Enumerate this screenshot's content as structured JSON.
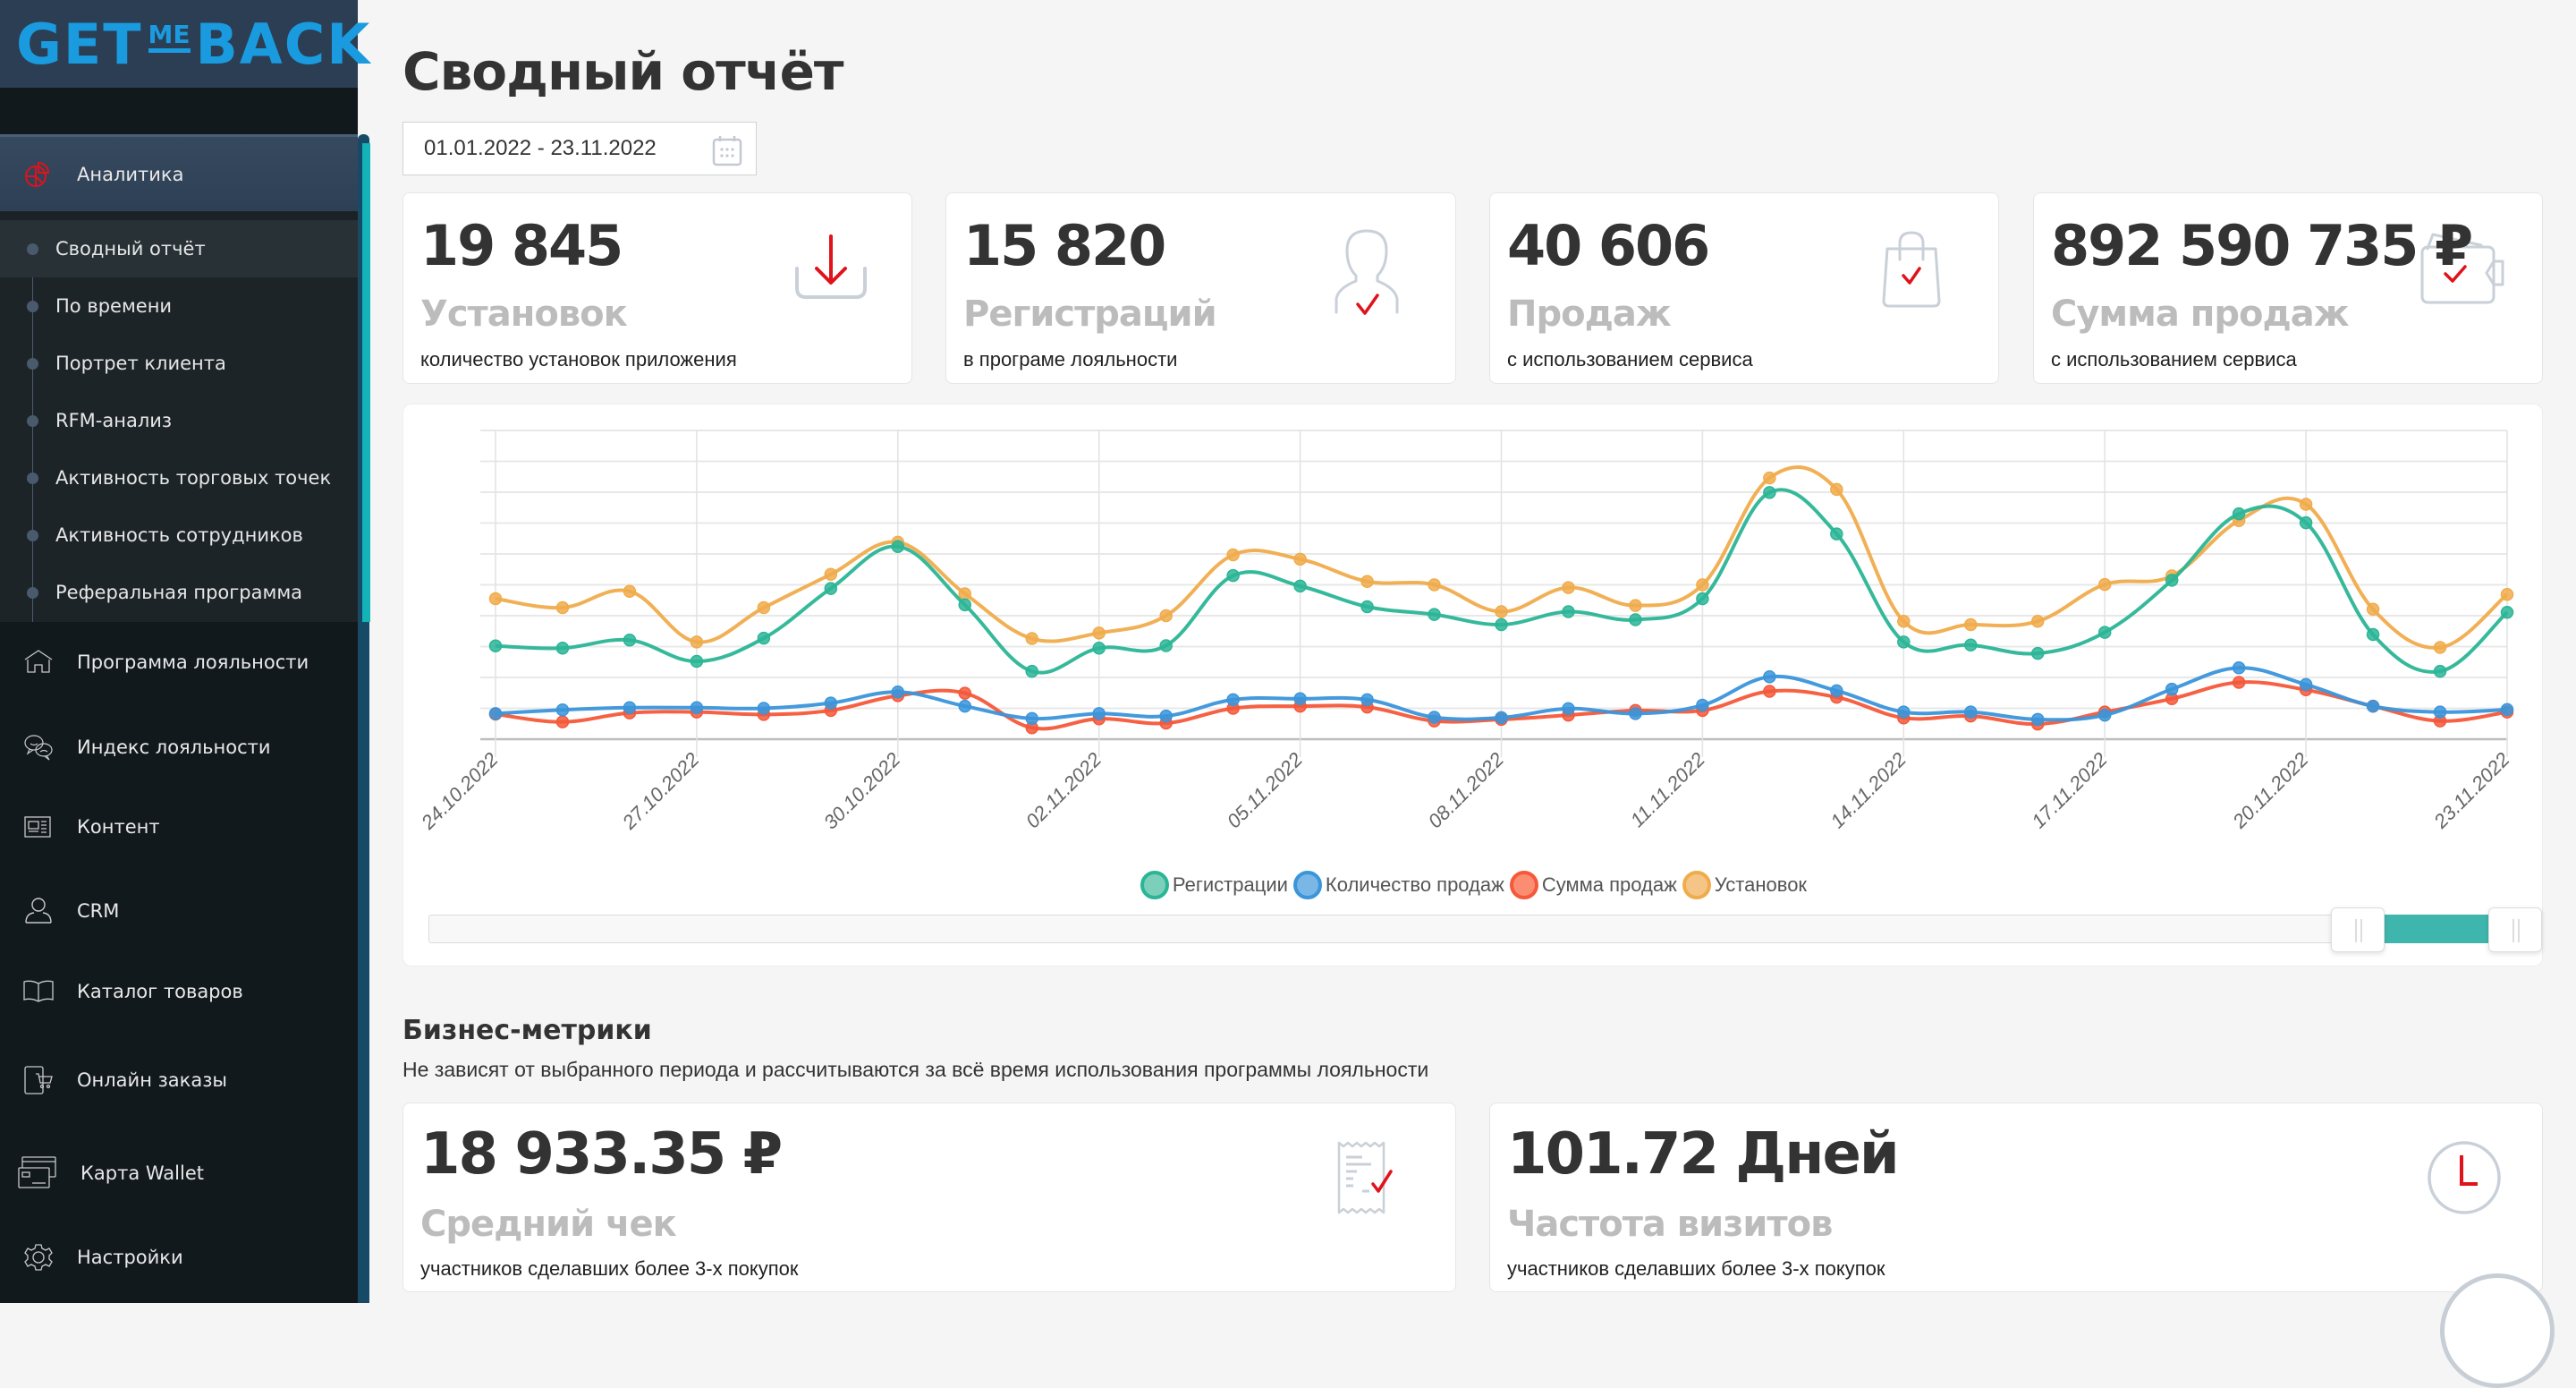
{
  "brand": {
    "logo_parts": [
      "GET",
      "ME",
      "BACK"
    ],
    "color": "#1a9be0"
  },
  "sidebar": {
    "active_section": {
      "label": "Аналитика",
      "icon": "pie-chart-icon"
    },
    "submenu": [
      {
        "label": "Сводный отчёт",
        "active": true
      },
      {
        "label": "По времени",
        "active": false
      },
      {
        "label": "Портрет клиента",
        "active": false
      },
      {
        "label": "RFM-анализ",
        "active": false
      },
      {
        "label": "Активность торговых точек",
        "active": false
      },
      {
        "label": "Активность сотрудников",
        "active": false
      },
      {
        "label": "Реферальная программа",
        "active": false
      }
    ],
    "items": [
      {
        "label": "Программа лояльности",
        "icon": "home-icon"
      },
      {
        "label": "Индекс лояльности",
        "icon": "chat-faces-icon"
      },
      {
        "label": "Контент",
        "icon": "newspaper-icon"
      },
      {
        "label": "CRM",
        "icon": "user-icon"
      },
      {
        "label": "Каталог товаров",
        "icon": "book-icon"
      },
      {
        "label": "Онлайн заказы",
        "icon": "mobile-cart-icon"
      },
      {
        "label": "Карта Wallet",
        "icon": "cards-icon"
      },
      {
        "label": "Настройки",
        "icon": "gear-icon"
      }
    ]
  },
  "header": {
    "title": "Сводный отчёт",
    "date_range": "01.01.2022 - 23.11.2022"
  },
  "kpis": [
    {
      "value": "19 845",
      "title": "Установок",
      "subtitle": "количество установок приложения",
      "icon": "download-icon"
    },
    {
      "value": "15 820",
      "title": "Регистраций",
      "subtitle": "в програме лояльности",
      "icon": "user-check-icon"
    },
    {
      "value": "40 606",
      "title": "Продаж",
      "subtitle": "с использованием сервиса",
      "icon": "shopping-bag-icon"
    },
    {
      "value": "892 590 735 ₽",
      "title": "Сумма продаж",
      "subtitle": "с использованием сервиса",
      "icon": "wallet-icon"
    }
  ],
  "chart_data": {
    "type": "line",
    "title": "",
    "xlabel": "",
    "ylabel": "",
    "ylim": [
      0,
      100
    ],
    "grid": true,
    "y_tick_labels_shown": false,
    "legend_position": "bottom-center",
    "x": [
      "24.10.2022",
      "25.10.2022",
      "26.10.2022",
      "27.10.2022",
      "28.10.2022",
      "29.10.2022",
      "30.10.2022",
      "31.10.2022",
      "01.11.2022",
      "02.11.2022",
      "03.11.2022",
      "04.11.2022",
      "05.11.2022",
      "06.11.2022",
      "07.11.2022",
      "08.11.2022",
      "09.11.2022",
      "10.11.2022",
      "11.11.2022",
      "12.11.2022",
      "13.11.2022",
      "14.11.2022",
      "15.11.2022",
      "16.11.2022",
      "17.11.2022",
      "18.11.2022",
      "19.11.2022",
      "20.11.2022",
      "21.11.2022",
      "22.11.2022",
      "23.11.2022"
    ],
    "x_tick_labels": [
      "24.10.2022",
      "27.10.2022",
      "30.10.2022",
      "02.11.2022",
      "05.11.2022",
      "08.11.2022",
      "11.11.2022",
      "14.11.2022",
      "17.11.2022",
      "20.11.2022",
      "23.11.2022"
    ],
    "series": [
      {
        "name": "Регистрации",
        "color": "#2bb596",
        "values": [
          30.2,
          29.5,
          32.1,
          25.2,
          32.7,
          48.8,
          62.4,
          43.5,
          22.0,
          29.5,
          30.3,
          53.0,
          49.6,
          42.9,
          40.4,
          37.1,
          41.3,
          38.7,
          45.5,
          79.9,
          66.5,
          31.5,
          30.5,
          27.8,
          34.6,
          51.5,
          73.0,
          70.1,
          33.9,
          22.0,
          41.1
        ]
      },
      {
        "name": "Количество продаж",
        "color": "#3a95da",
        "values": [
          8.3,
          9.5,
          10.2,
          10.2,
          10.0,
          11.7,
          15.3,
          10.7,
          6.7,
          8.3,
          7.5,
          12.8,
          13.1,
          12.8,
          7.1,
          7.0,
          9.9,
          8.3,
          11.0,
          20.2,
          15.7,
          8.8,
          8.8,
          6.4,
          7.8,
          16.2,
          23.1,
          17.7,
          10.7,
          8.8,
          9.6
        ]
      },
      {
        "name": "Сумма продаж",
        "color": "#f5583a",
        "values": [
          8.1,
          5.6,
          8.5,
          8.8,
          8.0,
          9.3,
          14.1,
          14.9,
          3.7,
          6.6,
          5.2,
          10.0,
          10.7,
          10.4,
          5.9,
          6.4,
          7.8,
          9.3,
          9.3,
          15.5,
          13.6,
          6.9,
          7.5,
          4.9,
          8.8,
          13.1,
          18.4,
          16.0,
          10.7,
          5.9,
          8.8
        ]
      },
      {
        "name": "Установок",
        "color": "#f0ac4c",
        "values": [
          45.5,
          42.6,
          47.9,
          31.5,
          42.6,
          53.4,
          63.8,
          47.1,
          32.6,
          34.4,
          40.0,
          59.7,
          58.3,
          51.1,
          50.0,
          41.3,
          49.1,
          43.3,
          50.0,
          84.6,
          80.9,
          38.2,
          37.1,
          38.2,
          50.1,
          52.9,
          70.8,
          76.1,
          42.1,
          29.7,
          46.9
        ]
      }
    ],
    "range_selector": {
      "start_fraction": 0.9,
      "end_fraction": 1.0,
      "fill_color": "#3fb6ad"
    }
  },
  "business": {
    "title": "Бизнес-метрики",
    "subtitle": "Не зависят от выбранного периода и рассчитываются за всё время использования программы лояльности",
    "cards": [
      {
        "value": "18 933.35 ₽",
        "title": "Средний чек",
        "subtitle": "участников сделавших более 3-х покупок",
        "icon": "receipt-icon"
      },
      {
        "value": "101.72 Дней",
        "title": "Частота визитов",
        "subtitle": "участников сделавших более 3-х покупок",
        "icon": "clock-icon"
      }
    ]
  },
  "colors": {
    "accent_red": "#e0121b",
    "icon_gray": "#c9d0d8",
    "sidebar_bg": "#12191d",
    "scroll_thumb": "#14b3b8"
  }
}
